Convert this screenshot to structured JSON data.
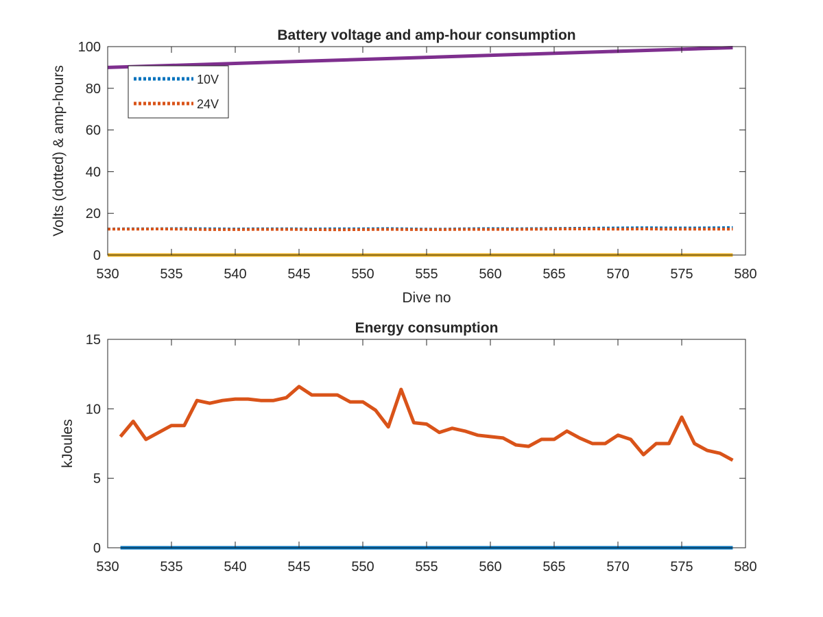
{
  "chart_data": [
    {
      "type": "line",
      "title": "Battery voltage and amp-hour consumption",
      "xlabel": "Dive no",
      "ylabel": "Volts (dotted) & amp-hours",
      "xlim": [
        530,
        580
      ],
      "ylim": [
        0,
        100
      ],
      "xticks": [
        530,
        535,
        540,
        545,
        550,
        555,
        560,
        565,
        570,
        575,
        580
      ],
      "yticks": [
        0,
        20,
        40,
        60,
        80,
        100
      ],
      "grid": false,
      "legend_position": "top-left",
      "series": [
        {
          "name": "10V",
          "style": "dotted",
          "color": "#0072BD",
          "x": [
            530,
            532,
            534,
            536,
            538,
            540,
            542,
            544,
            546,
            548,
            550,
            552,
            554,
            556,
            558,
            560,
            562,
            564,
            566,
            568,
            570,
            572,
            574,
            576,
            578,
            579
          ],
          "y": [
            12.5,
            12.6,
            12.6,
            12.7,
            12.6,
            12.5,
            12.6,
            12.6,
            12.5,
            12.6,
            12.6,
            12.7,
            12.5,
            12.4,
            12.6,
            12.7,
            12.6,
            12.7,
            12.8,
            12.9,
            13.0,
            13.1,
            13.0,
            13.0,
            13.1,
            13.2
          ]
        },
        {
          "name": "24V",
          "style": "dotted",
          "color": "#D95319",
          "x": [
            530,
            532,
            534,
            536,
            538,
            540,
            542,
            544,
            546,
            548,
            550,
            552,
            554,
            556,
            558,
            560,
            562,
            564,
            566,
            568,
            570,
            572,
            574,
            576,
            578,
            579
          ],
          "y": [
            12.4,
            12.4,
            12.5,
            12.4,
            12.2,
            12.2,
            12.3,
            12.3,
            12.2,
            12.1,
            12.2,
            12.3,
            12.2,
            12.2,
            12.3,
            12.3,
            12.3,
            12.4,
            12.5,
            12.5,
            12.4,
            12.5,
            12.4,
            12.4,
            12.4,
            12.4
          ]
        },
        {
          "style": "solid",
          "color": "#EDB120",
          "x": [
            530,
            579
          ],
          "y": [
            0,
            0
          ]
        },
        {
          "style": "solid",
          "color": "#7E2F8E",
          "x": [
            530,
            579
          ],
          "y": [
            90,
            99.5
          ]
        }
      ]
    },
    {
      "type": "line",
      "title": "Energy consumption",
      "xlabel": "",
      "ylabel": "kJoules",
      "xlim": [
        530,
        580
      ],
      "ylim": [
        0,
        15
      ],
      "xticks": [
        530,
        535,
        540,
        545,
        550,
        555,
        560,
        565,
        570,
        575,
        580
      ],
      "yticks": [
        0,
        5,
        10,
        15
      ],
      "grid": false,
      "series": [
        {
          "style": "solid",
          "color": "#D95319",
          "x": [
            531,
            532,
            533,
            534,
            535,
            536,
            537,
            538,
            539,
            540,
            541,
            542,
            543,
            544,
            545,
            546,
            547,
            548,
            549,
            550,
            551,
            552,
            553,
            554,
            555,
            556,
            557,
            558,
            559,
            560,
            561,
            562,
            563,
            564,
            565,
            566,
            567,
            568,
            569,
            570,
            571,
            572,
            573,
            574,
            575,
            576,
            577,
            578,
            579
          ],
          "y": [
            8.0,
            9.1,
            7.8,
            8.3,
            8.8,
            8.8,
            10.6,
            10.4,
            10.6,
            10.7,
            10.7,
            10.6,
            10.6,
            10.8,
            11.6,
            11.0,
            11.0,
            11.0,
            10.5,
            10.5,
            9.9,
            8.7,
            11.4,
            9.0,
            8.9,
            8.3,
            8.6,
            8.4,
            8.1,
            8.0,
            7.9,
            7.4,
            7.3,
            7.8,
            7.8,
            8.4,
            7.9,
            7.5,
            7.5,
            8.1,
            7.8,
            6.7,
            7.5,
            7.5,
            9.4,
            7.5,
            7.0,
            6.8,
            6.3
          ]
        },
        {
          "style": "solid",
          "color": "#0072BD",
          "x": [
            531,
            579
          ],
          "y": [
            0,
            0
          ]
        }
      ]
    }
  ]
}
